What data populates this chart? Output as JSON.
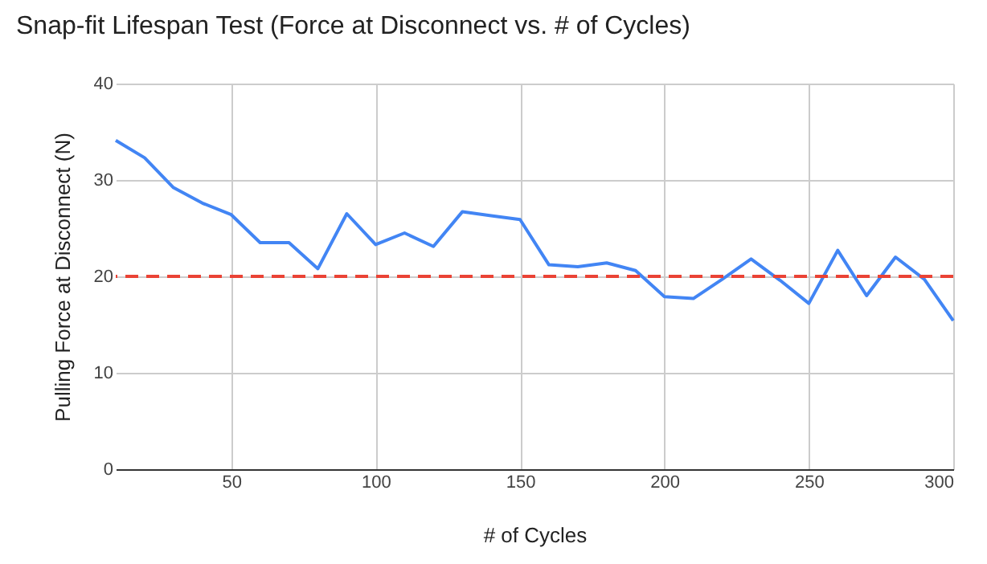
{
  "chart_data": {
    "type": "line",
    "title": "Snap-fit Lifespan Test (Force at Disconnect vs. # of Cycles)",
    "xlabel": "# of Cycles",
    "ylabel": "Pulling Force at Disconnect (N)",
    "x": [
      10,
      20,
      30,
      40,
      50,
      60,
      70,
      80,
      90,
      100,
      110,
      120,
      130,
      140,
      150,
      160,
      170,
      180,
      190,
      200,
      210,
      220,
      230,
      240,
      250,
      260,
      270,
      280,
      290,
      300
    ],
    "series": [
      {
        "color": "#4285f4",
        "values": [
          34.1,
          32.3,
          29.2,
          27.6,
          26.4,
          23.5,
          23.5,
          20.8,
          26.5,
          23.3,
          24.5,
          23.1,
          26.7,
          26.3,
          25.9,
          21.2,
          21.0,
          21.4,
          20.6,
          17.9,
          17.7,
          19.7,
          21.8,
          19.6,
          17.2,
          22.7,
          18.0,
          22.0,
          19.7,
          15.4
        ]
      }
    ],
    "xlim": [
      10,
      300
    ],
    "xticks": [
      50,
      100,
      150,
      200,
      250,
      300
    ],
    "ylim": [
      0,
      40
    ],
    "yticks": [
      0,
      10,
      20,
      30,
      40
    ],
    "ref_lines": [
      {
        "axis": "y",
        "value": 20,
        "color": "#ea4335",
        "line_style": "dashed"
      }
    ],
    "grid": true,
    "legend": false,
    "marker": "none",
    "line_style": "solid"
  }
}
